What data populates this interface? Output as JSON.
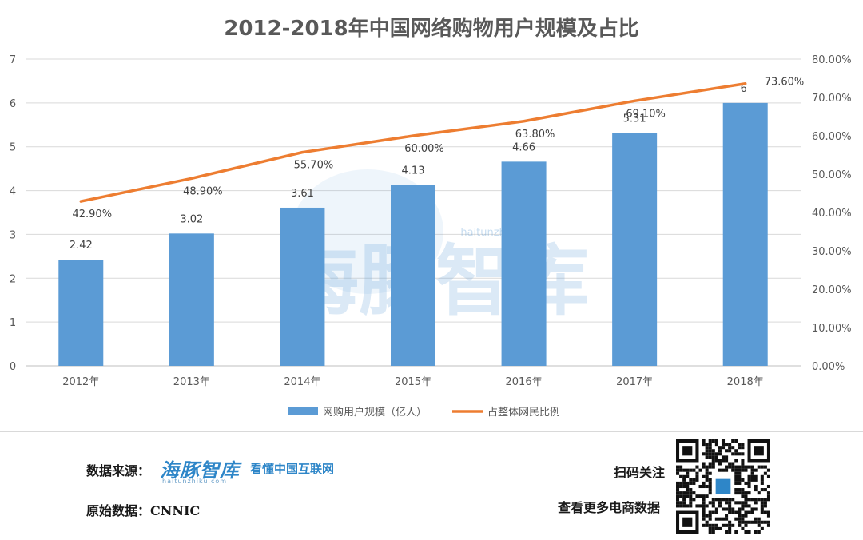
{
  "chart_data": {
    "type": "bar",
    "title": "2012-2018年中国网络购物用户规模及占比",
    "categories": [
      "2012年",
      "2013年",
      "2014年",
      "2015年",
      "2016年",
      "2017年",
      "2018年"
    ],
    "series": [
      {
        "name": "网购用户规模（亿人）",
        "type": "bar",
        "axis": "left",
        "values": [
          2.42,
          3.02,
          3.61,
          4.13,
          4.66,
          5.31,
          6
        ],
        "labels": [
          "2.42",
          "3.02",
          "3.61",
          "4.13",
          "4.66",
          "5.31",
          "6"
        ],
        "color": "#5b9bd5"
      },
      {
        "name": "占整体网民比例",
        "type": "line",
        "axis": "right",
        "values": [
          42.9,
          48.9,
          55.7,
          60.0,
          63.8,
          69.1,
          73.6
        ],
        "labels": [
          "42.90%",
          "48.90%",
          "55.70%",
          "60.00%",
          "63.80%",
          "69.10%",
          "73.60%"
        ],
        "color": "#ed7d31"
      }
    ],
    "y_left": {
      "min": 0,
      "max": 7,
      "ticks": [
        "0",
        "1",
        "2",
        "3",
        "4",
        "5",
        "6",
        "7"
      ]
    },
    "y_right": {
      "min": 0,
      "max": 80,
      "ticks": [
        "0.00%",
        "10.00%",
        "20.00%",
        "30.00%",
        "40.00%",
        "50.00%",
        "60.00%",
        "70.00%",
        "80.00%"
      ]
    },
    "grid": true,
    "legend_position": "bottom"
  },
  "watermark": {
    "text": "海豚智库",
    "url": "haitunzhiku.com"
  },
  "footer": {
    "source_label": "数据来源：",
    "logo_text": "海豚智库",
    "logo_slogan": "看懂中国互联网",
    "logo_url": "haitunzhiku.com",
    "raw_data_label": "原始数据：CNNIC",
    "scan_label": "扫码关注",
    "scan_sub_label": "查看更多电商数据"
  },
  "colors": {
    "bar": "#5b9bd5",
    "line": "#ed7d31",
    "brand": "#2e86c8"
  }
}
